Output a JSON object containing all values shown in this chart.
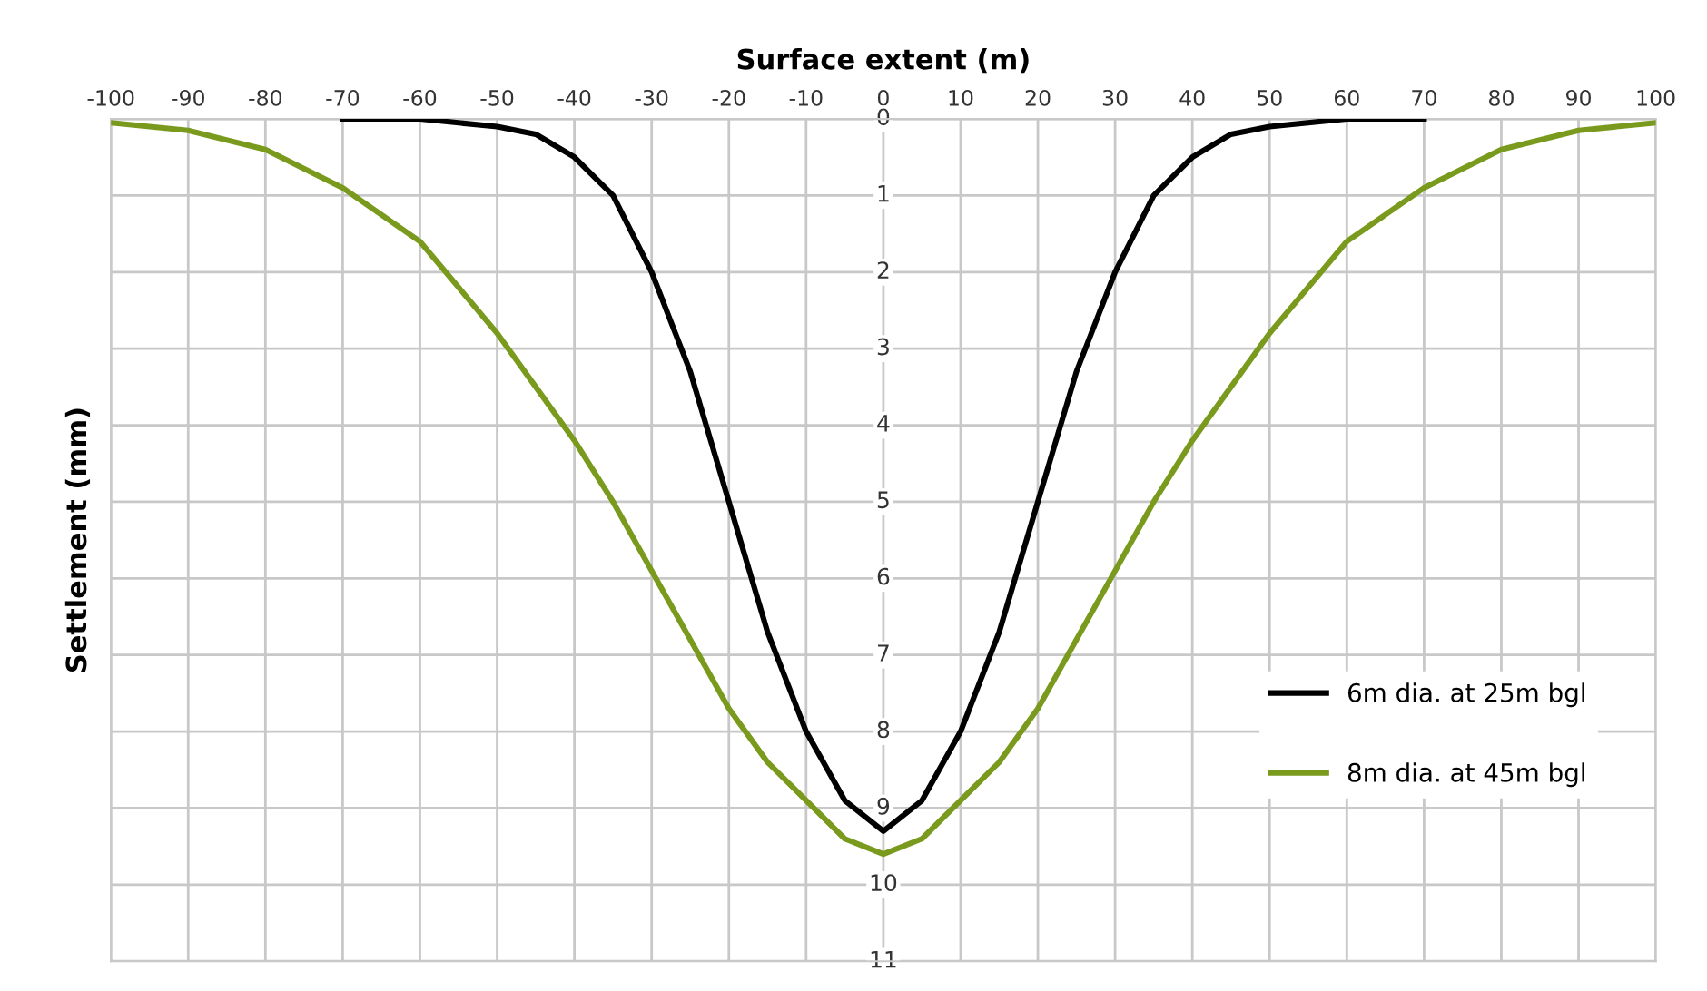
{
  "chart_data": {
    "type": "line",
    "xlabel": "Surface extent (m)",
    "ylabel": "Settlement (mm)",
    "xlim": [
      -100,
      100
    ],
    "xticks": [
      -100,
      -90,
      -80,
      -70,
      -60,
      -50,
      -40,
      -30,
      -20,
      -10,
      0,
      10,
      20,
      30,
      40,
      50,
      60,
      70,
      80,
      90,
      100
    ],
    "ylim": [
      11,
      0
    ],
    "yticks": [
      0,
      1,
      2,
      3,
      4,
      5,
      6,
      7,
      8,
      9,
      10,
      11
    ],
    "grid": true,
    "legend": "bottom right",
    "marker": "none",
    "line_style": "solid",
    "series": [
      {
        "name": "6m dia. at 25m bgl",
        "color": "#000000",
        "x": [
          -70,
          -60,
          -50,
          -45,
          -40,
          -35,
          -30,
          -25,
          -20,
          -15,
          -10,
          -5,
          0,
          5,
          10,
          15,
          20,
          25,
          30,
          35,
          40,
          45,
          50,
          60,
          70
        ],
        "values": [
          0,
          0,
          0.1,
          0.2,
          0.5,
          1.0,
          2.0,
          3.3,
          5.0,
          6.7,
          8.0,
          8.9,
          9.3,
          8.9,
          8.0,
          6.7,
          5.0,
          3.3,
          2.0,
          1.0,
          0.5,
          0.2,
          0.1,
          0,
          0
        ]
      },
      {
        "name": "8m dia. at 45m bgl",
        "color": "#7a9a1e",
        "x": [
          -100,
          -90,
          -80,
          -70,
          -60,
          -50,
          -45,
          -40,
          -35,
          -30,
          -25,
          -20,
          -15,
          -10,
          -5,
          0,
          5,
          10,
          15,
          20,
          25,
          30,
          35,
          40,
          45,
          50,
          60,
          70,
          80,
          90,
          100
        ],
        "values": [
          0.05,
          0.15,
          0.4,
          0.9,
          1.6,
          2.8,
          3.5,
          4.2,
          5.0,
          5.9,
          6.8,
          7.7,
          8.4,
          8.9,
          9.4,
          9.6,
          9.4,
          8.9,
          8.4,
          7.7,
          6.8,
          5.9,
          5.0,
          4.2,
          3.5,
          2.8,
          1.6,
          0.9,
          0.4,
          0.15,
          0.05
        ]
      }
    ]
  }
}
